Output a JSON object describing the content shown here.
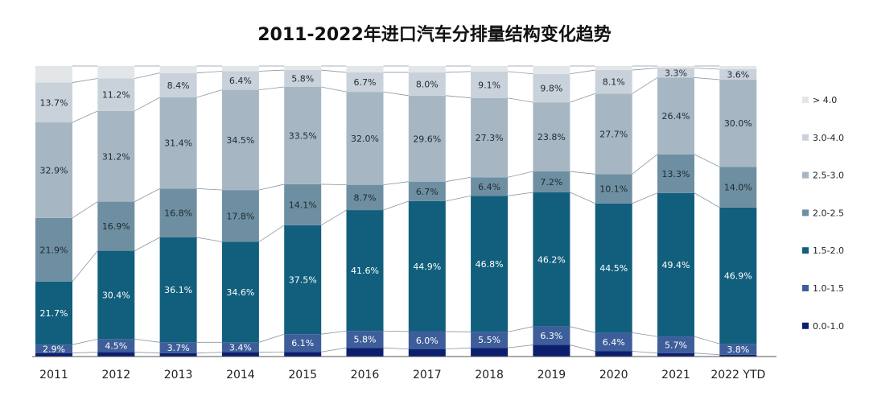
{
  "chart_data": {
    "type": "bar",
    "stacked": true,
    "normalized_percent": true,
    "title": "2011-2022年进口汽车分排量结构变化趋势",
    "categories": [
      "2011",
      "2012",
      "2013",
      "2014",
      "2015",
      "2016",
      "2017",
      "2018",
      "2019",
      "2020",
      "2021",
      "2022 YTD"
    ],
    "series": [
      {
        "name": "0.0-1.0",
        "color": "#0c1f6e",
        "labeled": false,
        "values": [
          1.2,
          1.5,
          1.2,
          1.5,
          1.6,
          3.0,
          2.6,
          3.0,
          4.0,
          1.8,
          1.2,
          0.6
        ]
      },
      {
        "name": "1.0-1.5",
        "color": "#3d5e9a",
        "labeled": true,
        "values": [
          2.9,
          4.5,
          3.7,
          3.4,
          6.1,
          5.8,
          6.0,
          5.5,
          6.3,
          6.4,
          5.7,
          3.8
        ]
      },
      {
        "name": "1.5-2.0",
        "color": "#115f7d",
        "labeled": true,
        "values": [
          21.7,
          30.4,
          36.1,
          34.6,
          37.5,
          41.6,
          44.9,
          46.8,
          46.2,
          44.5,
          49.4,
          46.9
        ]
      },
      {
        "name": "2.0-2.5",
        "color": "#6e8fa1",
        "labeled": true,
        "values": [
          21.9,
          16.9,
          16.8,
          17.8,
          14.1,
          8.7,
          6.7,
          6.4,
          7.2,
          10.1,
          13.3,
          14.0
        ]
      },
      {
        "name": "2.5-3.0",
        "color": "#a6b7c3",
        "labeled": true,
        "values": [
          32.9,
          31.2,
          31.4,
          34.5,
          33.5,
          32.0,
          29.6,
          27.3,
          23.8,
          27.7,
          26.4,
          30.0
        ]
      },
      {
        "name": "3.0-4.0",
        "color": "#c9d2da",
        "labeled": true,
        "values": [
          13.7,
          11.2,
          8.4,
          6.4,
          5.8,
          6.7,
          8.0,
          9.1,
          9.8,
          8.1,
          3.3,
          3.6
        ]
      },
      {
        "name": "> 4.0",
        "color": "#e3e6e9",
        "labeled": false,
        "values": [
          5.7,
          4.3,
          2.4,
          1.8,
          1.4,
          2.2,
          2.2,
          1.9,
          2.7,
          1.4,
          0.7,
          1.1
        ]
      }
    ],
    "value_suffix": "%",
    "legend_position": "right",
    "ylim": [
      0,
      100
    ]
  }
}
